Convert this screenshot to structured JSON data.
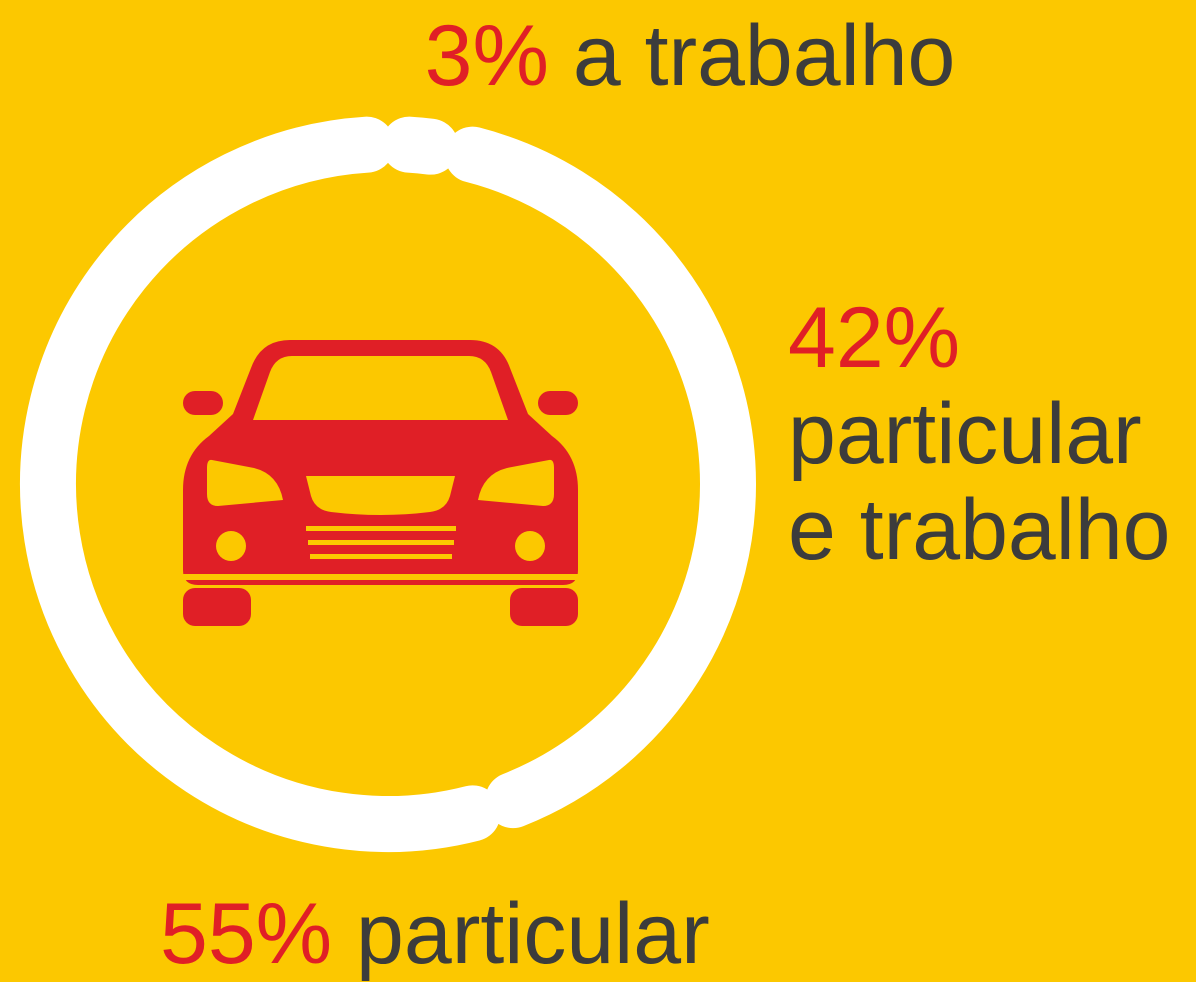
{
  "chart_data": {
    "type": "donut",
    "categories": [
      "a trabalho",
      "particular e trabalho",
      "particular"
    ],
    "values": [
      3,
      42,
      55
    ],
    "value_labels": [
      "3%",
      "42%",
      "55%"
    ],
    "color": "#ffffff"
  }
}
